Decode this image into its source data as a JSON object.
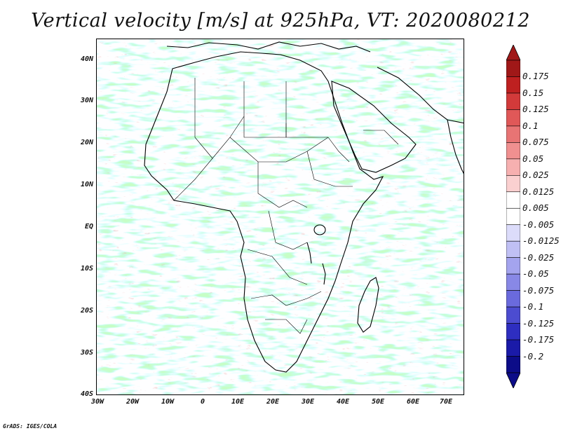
{
  "title": "Vertical velocity [m/s] at 925hPa, VT: 2020080212",
  "map": {
    "lat_labels": [
      "40N",
      "30N",
      "20N",
      "10N",
      "EQ",
      "10S",
      "20S",
      "30S",
      "40S"
    ],
    "lon_labels": [
      "30W",
      "20W",
      "10W",
      "0",
      "10E",
      "20E",
      "30E",
      "40E",
      "50E",
      "60E",
      "70E"
    ],
    "lat_range": [
      -40,
      45
    ],
    "lon_range": [
      -30,
      75
    ],
    "field": "vertical velocity",
    "level": "925hPa",
    "units": "m/s"
  },
  "colorbar": {
    "levels": [
      "0.175",
      "0.15",
      "0.125",
      "0.1",
      "0.075",
      "0.05",
      "0.025",
      "0.0125",
      "0.005",
      "-0.005",
      "-0.0125",
      "-0.025",
      "-0.05",
      "-0.075",
      "-0.1",
      "-0.125",
      "-0.175",
      "-0.2"
    ],
    "colors": [
      "#a01818",
      "#be2020",
      "#d23a3a",
      "#e05858",
      "#e87474",
      "#f09090",
      "#f6b0b0",
      "#fad0d0",
      "#ffffff",
      "#ffffff",
      "#dcdcfa",
      "#c0c0f4",
      "#a4a4ee",
      "#8888e6",
      "#6a6add",
      "#4c4cd0",
      "#2e2ec0",
      "#1a1aa8",
      "#0c0c88"
    ],
    "top_arrow_color": "#a01818",
    "bottom_arrow_color": "#0c0c88"
  },
  "credit": "GrADS: IGES/COLA"
}
